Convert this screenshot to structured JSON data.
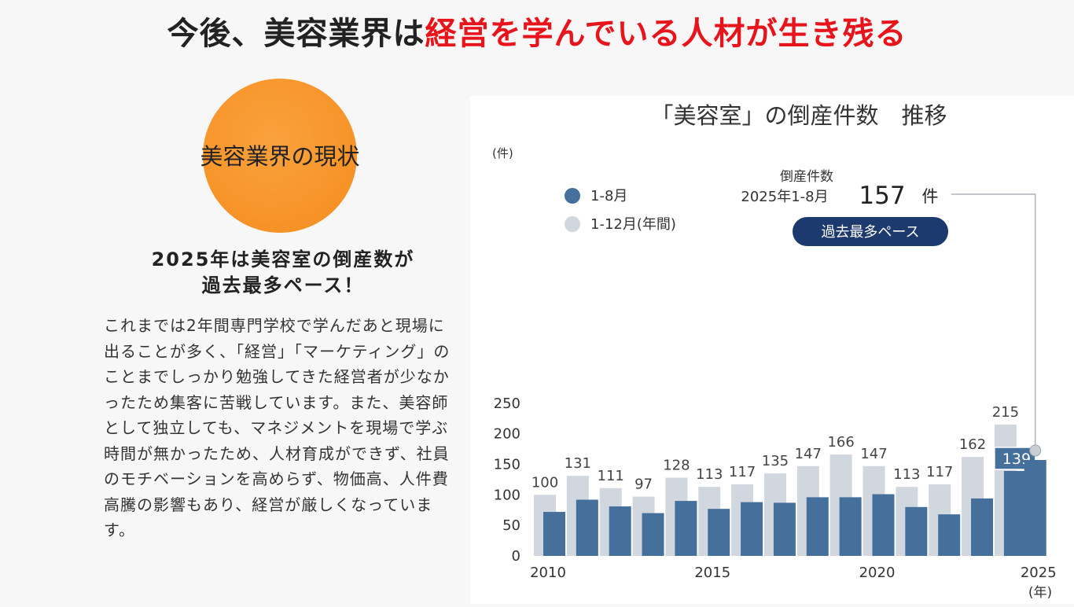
{
  "headline": {
    "part1": "今後、美容業界は",
    "part2": "経営を学んでいる人材が生き残る"
  },
  "circle_label": "美容業界の現状",
  "subhead": {
    "line1": "2025年は美容室の倒産数が",
    "line2": "過去最多ペース！"
  },
  "body_text": "これまでは2年間専門学校で学んだあと現場に出ることが多く、「経営」「マーケティング」のことまでしっかり勉強してきた経営者が少なかったため集客に苦戦しています。また、美容師として独立しても、マネジメントを現場で学ぶ時間が無かったため、人材育成ができず、社員のモチベーションを高めらず、物価高、人件費高騰の影響もあり、経営が厳しくなっています。",
  "colors": {
    "accent_red": "#e8141b",
    "orange": "#f7952a",
    "bar_partial": "#46709c",
    "bar_annual": "#d0d7de",
    "badge": "#1d3a6e"
  },
  "chart_data": {
    "type": "bar",
    "title": "「美容室」の倒産件数　推移",
    "yunit": "(件)",
    "xunit": "(年)",
    "ylim": [
      0,
      250
    ],
    "yticks": [
      0,
      50,
      100,
      150,
      200,
      250
    ],
    "x": [
      2010,
      2011,
      2012,
      2013,
      2014,
      2015,
      2016,
      2017,
      2018,
      2019,
      2020,
      2021,
      2022,
      2023,
      2024,
      2025
    ],
    "xtick_labels": [
      "2010",
      "2015",
      "2020",
      "2025"
    ],
    "series": [
      {
        "name": "1-12月(年間)",
        "values": [
          100,
          131,
          111,
          97,
          128,
          113,
          117,
          135,
          147,
          166,
          147,
          113,
          117,
          162,
          215,
          null
        ]
      },
      {
        "name": "1-8月",
        "values": [
          72,
          92,
          81,
          70,
          90,
          77,
          88,
          87,
          96,
          96,
          101,
          80,
          68,
          94,
          139,
          157
        ]
      }
    ],
    "annotation": {
      "label": "倒産件数",
      "period": "2025年1-8月",
      "value": "157",
      "unit": "件",
      "badge": "過去最多ペース"
    },
    "grid": false,
    "legend": "top-left"
  }
}
